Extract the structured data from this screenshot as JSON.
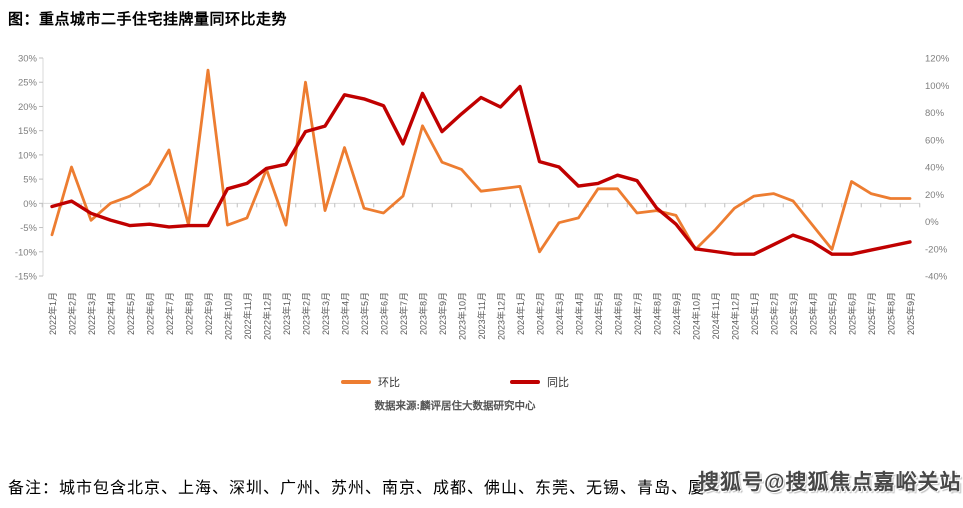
{
  "title": "图：重点城市二手住宅挂牌量同环比走势",
  "legend": [
    {
      "label": "环比",
      "color": "#ED7D31"
    },
    {
      "label": "同比",
      "color": "#C00000"
    }
  ],
  "source": "数据来源:麟评居住大数据研究中心",
  "note": "备注：城市包含北京、上海、深圳、广州、苏州、南京、成都、佛山、东莞、无锡、青岛、厦",
  "watermark": "搜狐号@搜狐焦点嘉峪关站",
  "colors": {
    "gridline": "#D9D9D9",
    "tick": "#BFBFBF",
    "axis_text": "#7f7f7f",
    "category_text": "#595959"
  },
  "chart_data": {
    "type": "line",
    "title": "重点城市二手住宅挂牌量同环比走势",
    "categories": [
      "2022年1月",
      "2022年2月",
      "2022年3月",
      "2022年4月",
      "2022年5月",
      "2022年6月",
      "2022年7月",
      "2022年8月",
      "2022年9月",
      "2022年10月",
      "2022年11月",
      "2022年12月",
      "2023年1月",
      "2023年2月",
      "2023年3月",
      "2023年4月",
      "2023年5月",
      "2023年6月",
      "2023年7月",
      "2023年8月",
      "2023年9月",
      "2023年10月",
      "2023年11月",
      "2023年12月",
      "2024年1月",
      "2024年2月",
      "2024年3月",
      "2024年4月",
      "2024年5月",
      "2024年6月",
      "2024年7月",
      "2024年8月",
      "2024年9月",
      "2024年10月",
      "2024年11月",
      "2024年12月",
      "2025年1月",
      "2025年2月",
      "2025年3月",
      "2025年4月",
      "2025年5月",
      "2025年6月",
      "2025年7月",
      "2025年8月",
      "2025年9月"
    ],
    "series": [
      {
        "name": "环比",
        "axis": "left",
        "color": "#ED7D31",
        "width": 2.8,
        "values": [
          -6.5,
          7.5,
          -3.5,
          0,
          1.5,
          4,
          11,
          -4.5,
          27.5,
          -4.5,
          -3,
          7,
          -4.5,
          25,
          -1.5,
          11.5,
          -1,
          -2,
          1.5,
          16,
          8.5,
          7,
          2.5,
          3,
          3.5,
          -10,
          -4,
          -3,
          3,
          3,
          -2,
          -1.5,
          -2.5,
          -9.5,
          -5.5,
          -1,
          1.5,
          2,
          0.5,
          -4.5,
          -9.5,
          4.5,
          2,
          1,
          1
        ]
      },
      {
        "name": "同比",
        "axis": "right",
        "color": "#C00000",
        "width": 3.4,
        "values": [
          11,
          15,
          6,
          1,
          -3,
          -2,
          -4,
          -3,
          -3,
          24,
          28,
          39,
          42,
          66,
          70,
          93,
          90,
          85,
          57,
          94,
          66,
          79,
          91,
          84,
          99,
          44,
          40,
          26,
          28,
          34,
          30,
          10,
          -2,
          -20,
          -22,
          -24,
          -24,
          -17,
          -10,
          -15,
          -24,
          -24,
          -21,
          -18,
          -15
        ]
      }
    ],
    "left_axis": {
      "min": -15,
      "max": 30,
      "ticks": [
        "30%",
        "25%",
        "20%",
        "15%",
        "10%",
        "5%",
        "0%",
        "-5%",
        "-10%",
        "-15%"
      ]
    },
    "right_axis": {
      "min": -40,
      "max": 120,
      "ticks": [
        "120%",
        "100%",
        "80%",
        "60%",
        "40%",
        "20%",
        "0%",
        "-20%",
        "-40%"
      ]
    },
    "grid": "single horizontal gridline at left-axis 0%, category tick marks below it",
    "legend_position": "bottom-center"
  }
}
